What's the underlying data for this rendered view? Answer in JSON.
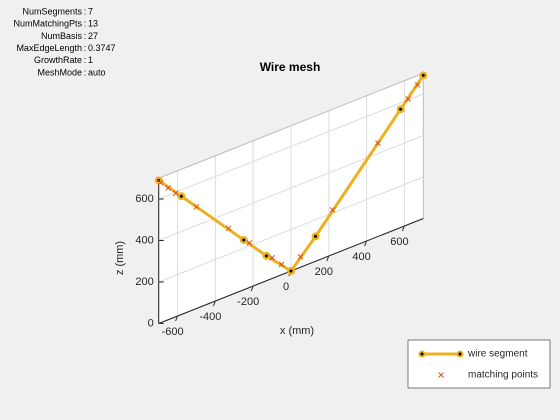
{
  "mesh_info": [
    {
      "label": "NumSegments",
      "value": 7
    },
    {
      "label": "NumMatchingPts",
      "value": 13
    },
    {
      "label": "NumBasis",
      "value": 27
    },
    {
      "label": "MaxEdgeLength",
      "value": 0.3747
    },
    {
      "label": "GrowthRate",
      "value": 1
    },
    {
      "label": "MeshMode",
      "value": "auto"
    }
  ],
  "chart_data": {
    "type": "line3d",
    "title": "Wire mesh",
    "xlabel": "x (mm)",
    "zlabel": "z (mm)",
    "xlim": [
      -700,
      700
    ],
    "xticks": [
      -600,
      -400,
      -200,
      0,
      200,
      400,
      600
    ],
    "zlim": [
      0,
      700
    ],
    "zticks": [
      0,
      200,
      400,
      600
    ],
    "grid": true,
    "legend": "bottom-right",
    "series": [
      {
        "name": "wire segment",
        "color": "#EDB120",
        "marker_color": "#000000",
        "x": [
          -700,
          -580,
          -250,
          -130,
          0,
          130,
          580,
          700
        ],
        "z": [
          690,
          570,
          240,
          120,
          0,
          120,
          570,
          690
        ]
      },
      {
        "name": "matching points",
        "color": "#D95319",
        "x": [
          -690,
          -650,
          -610,
          -500,
          -330,
          -220,
          -100,
          -50,
          50,
          220,
          460,
          620,
          670
        ],
        "z": [
          675,
          635,
          595,
          490,
          325,
          215,
          100,
          50,
          50,
          215,
          450,
          605,
          655
        ]
      }
    ]
  }
}
